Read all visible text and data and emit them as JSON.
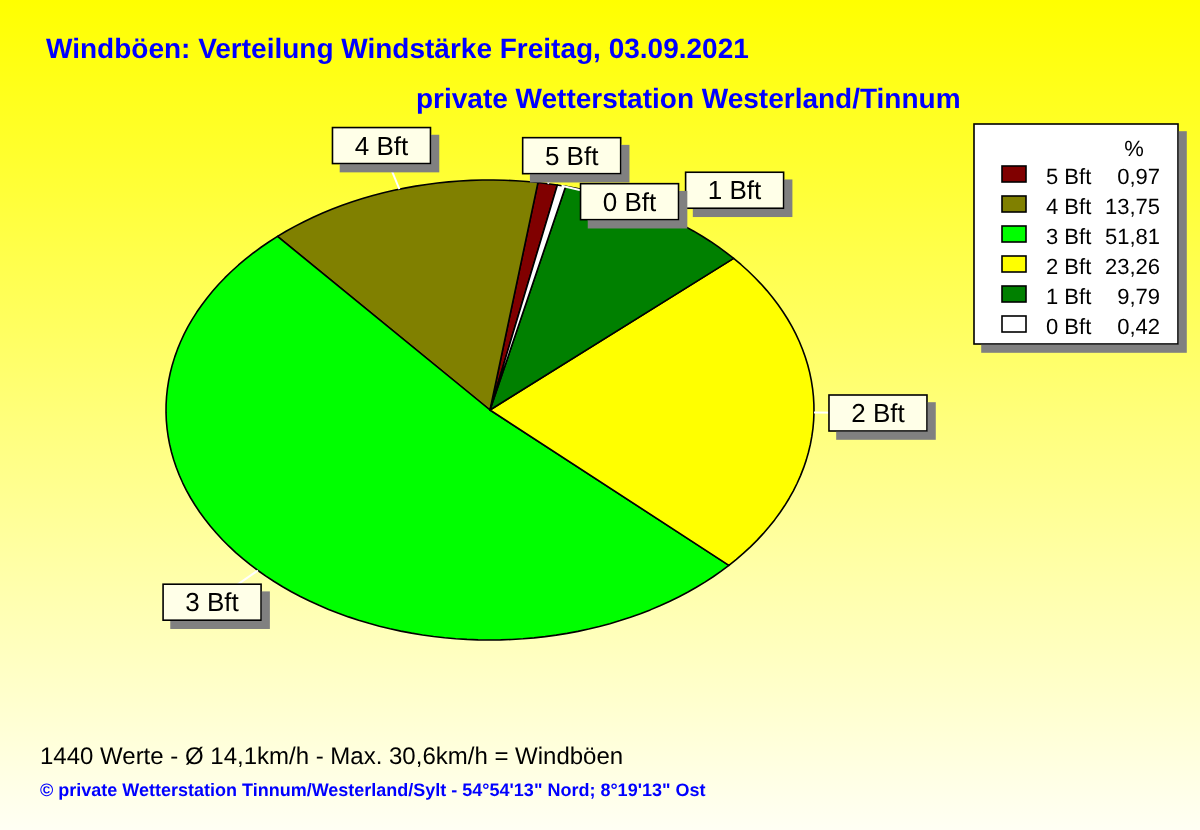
{
  "chart_data": {
    "type": "pie",
    "title": "Windböen: Verteilung Windstärke  Freitag, 03.09.2021",
    "subtitle": "private Wetterstation Westerland/Tinnum",
    "categories": [
      "5 Bft",
      "4 Bft",
      "3 Bft",
      "2 Bft",
      "1 Bft",
      "0 Bft"
    ],
    "values": [
      0.97,
      13.75,
      51.81,
      23.26,
      9.79,
      0.42
    ],
    "value_labels": [
      "0,97",
      "13,75",
      "51,81",
      "23,26",
      "9,79",
      "0,42"
    ],
    "colors": [
      "#800000",
      "#808000",
      "#00ff00",
      "#ffff00",
      "#008000",
      "#ffffff"
    ],
    "legend": "top right",
    "legend_title": "%",
    "annotations": [
      "1440 Werte   -   Ø 14,1km/h  -  Max. 30,6km/h = Windböen",
      "© private Wetterstation Tinnum/Westerland/Sylt  -  54°54'13\" Nord; 8°19'13\" Ost"
    ]
  }
}
